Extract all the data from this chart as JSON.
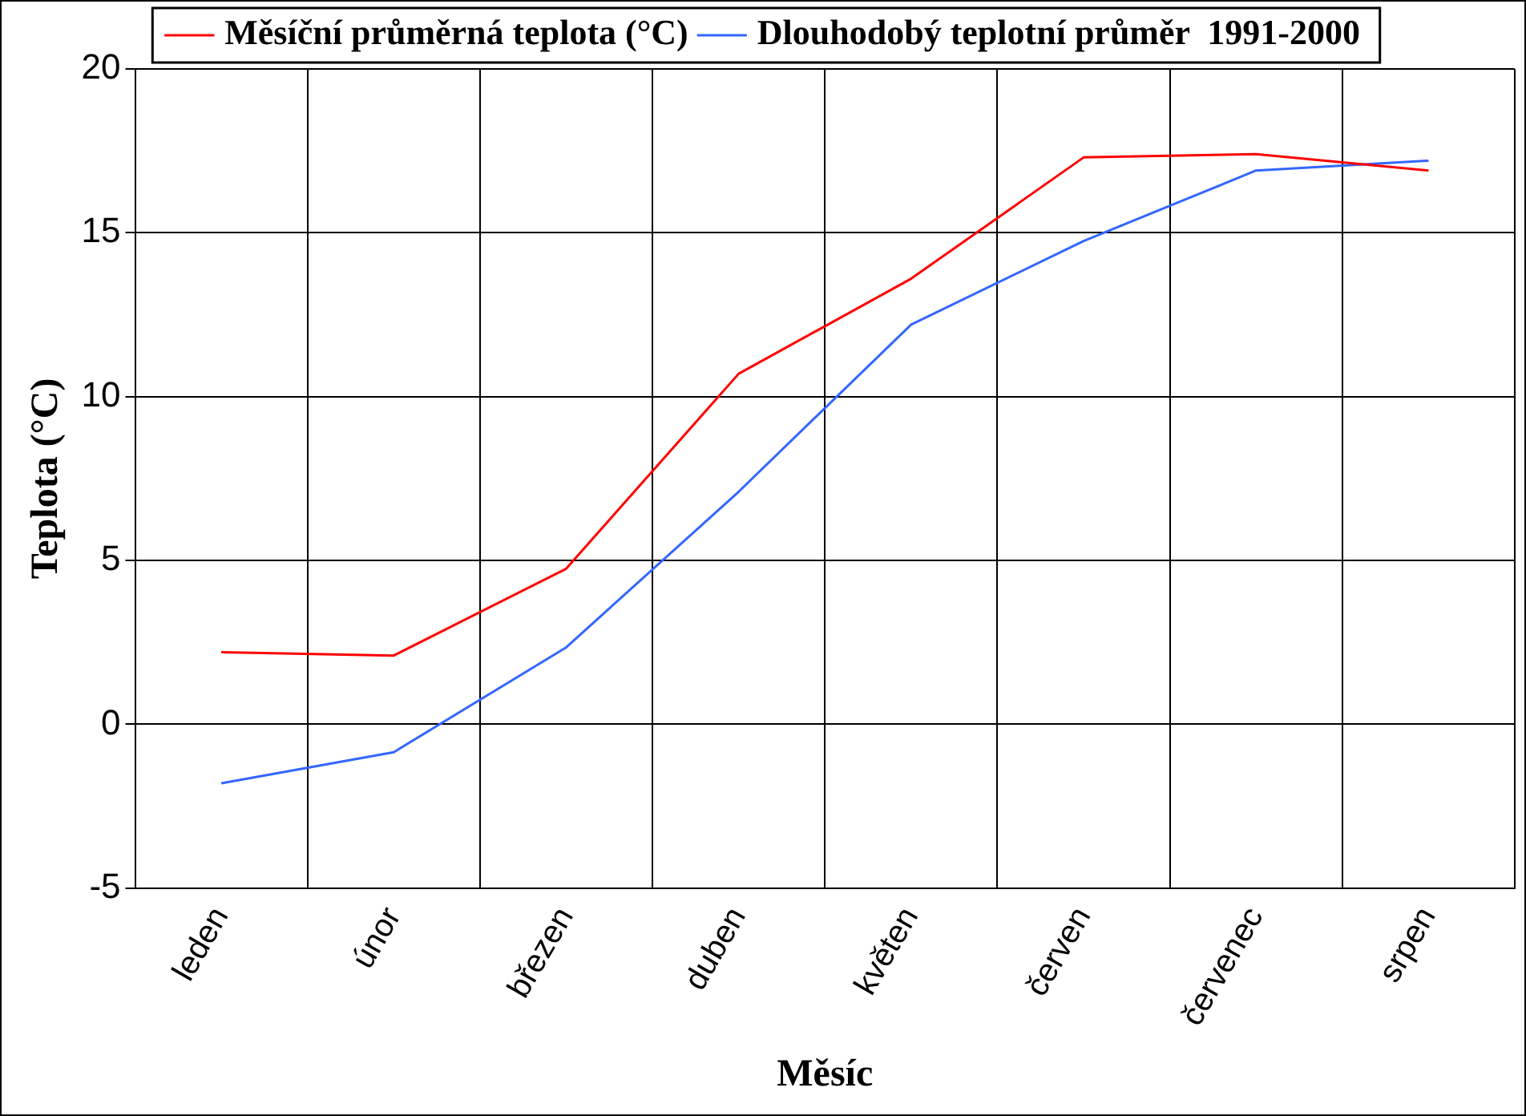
{
  "chart_data": {
    "type": "line",
    "xlabel": "Měsíc",
    "ylabel": "Teplota (°C)",
    "categories": [
      "leden",
      "únor",
      "březen",
      "duben",
      "květen",
      "červen",
      "červenec",
      "srpen"
    ],
    "series": [
      {
        "name": "Měsíční průměrná teplota (°C)",
        "color": "#ff0000",
        "values": [
          2.2,
          2.1,
          4.75,
          10.7,
          13.6,
          17.3,
          17.4,
          16.9
        ]
      },
      {
        "name": "Dlouhodobý teplotní průměr  1991-2000",
        "color": "#3366ff",
        "values": [
          -1.8,
          -0.85,
          2.35,
          7.1,
          12.2,
          14.75,
          16.9,
          17.2
        ]
      }
    ],
    "ylim": [
      -5,
      20
    ],
    "yticks": [
      -5,
      0,
      5,
      10,
      15,
      20
    ],
    "grid": true,
    "legend": "top",
    "marker": "none",
    "line_style": "solid"
  }
}
